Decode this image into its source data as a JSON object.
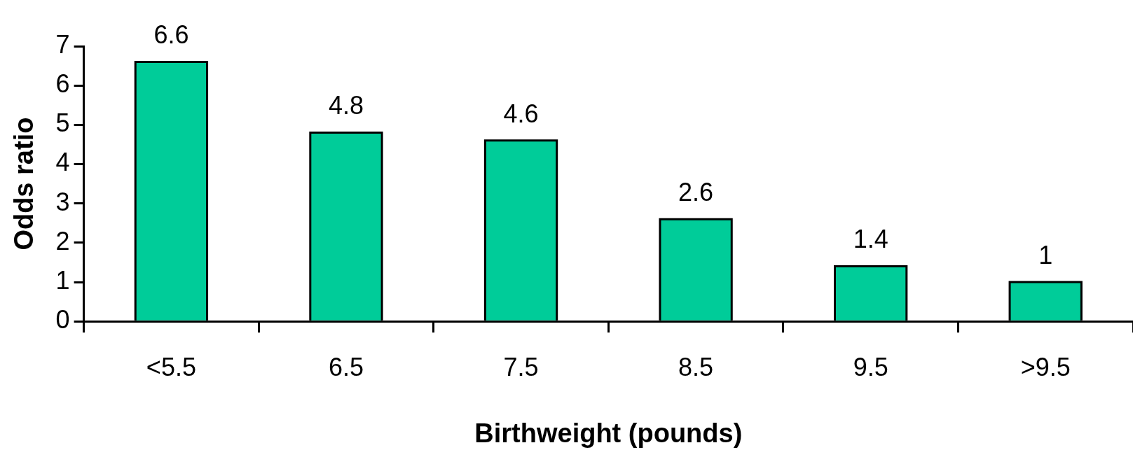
{
  "chart_data": {
    "type": "bar",
    "xlabel": "Birthweight (pounds)",
    "ylabel": "Odds ratio",
    "categories": [
      "<5.5",
      "6.5",
      "7.5",
      "8.5",
      "9.5",
      ">9.5"
    ],
    "values": [
      6.6,
      4.8,
      4.6,
      2.6,
      1.4,
      1
    ],
    "color": "#00cc99",
    "ylim": [
      0,
      7
    ],
    "yticks": [
      0,
      1,
      2,
      3,
      4,
      5,
      6,
      7
    ],
    "grid": false,
    "legend": false,
    "data_labels": true
  }
}
